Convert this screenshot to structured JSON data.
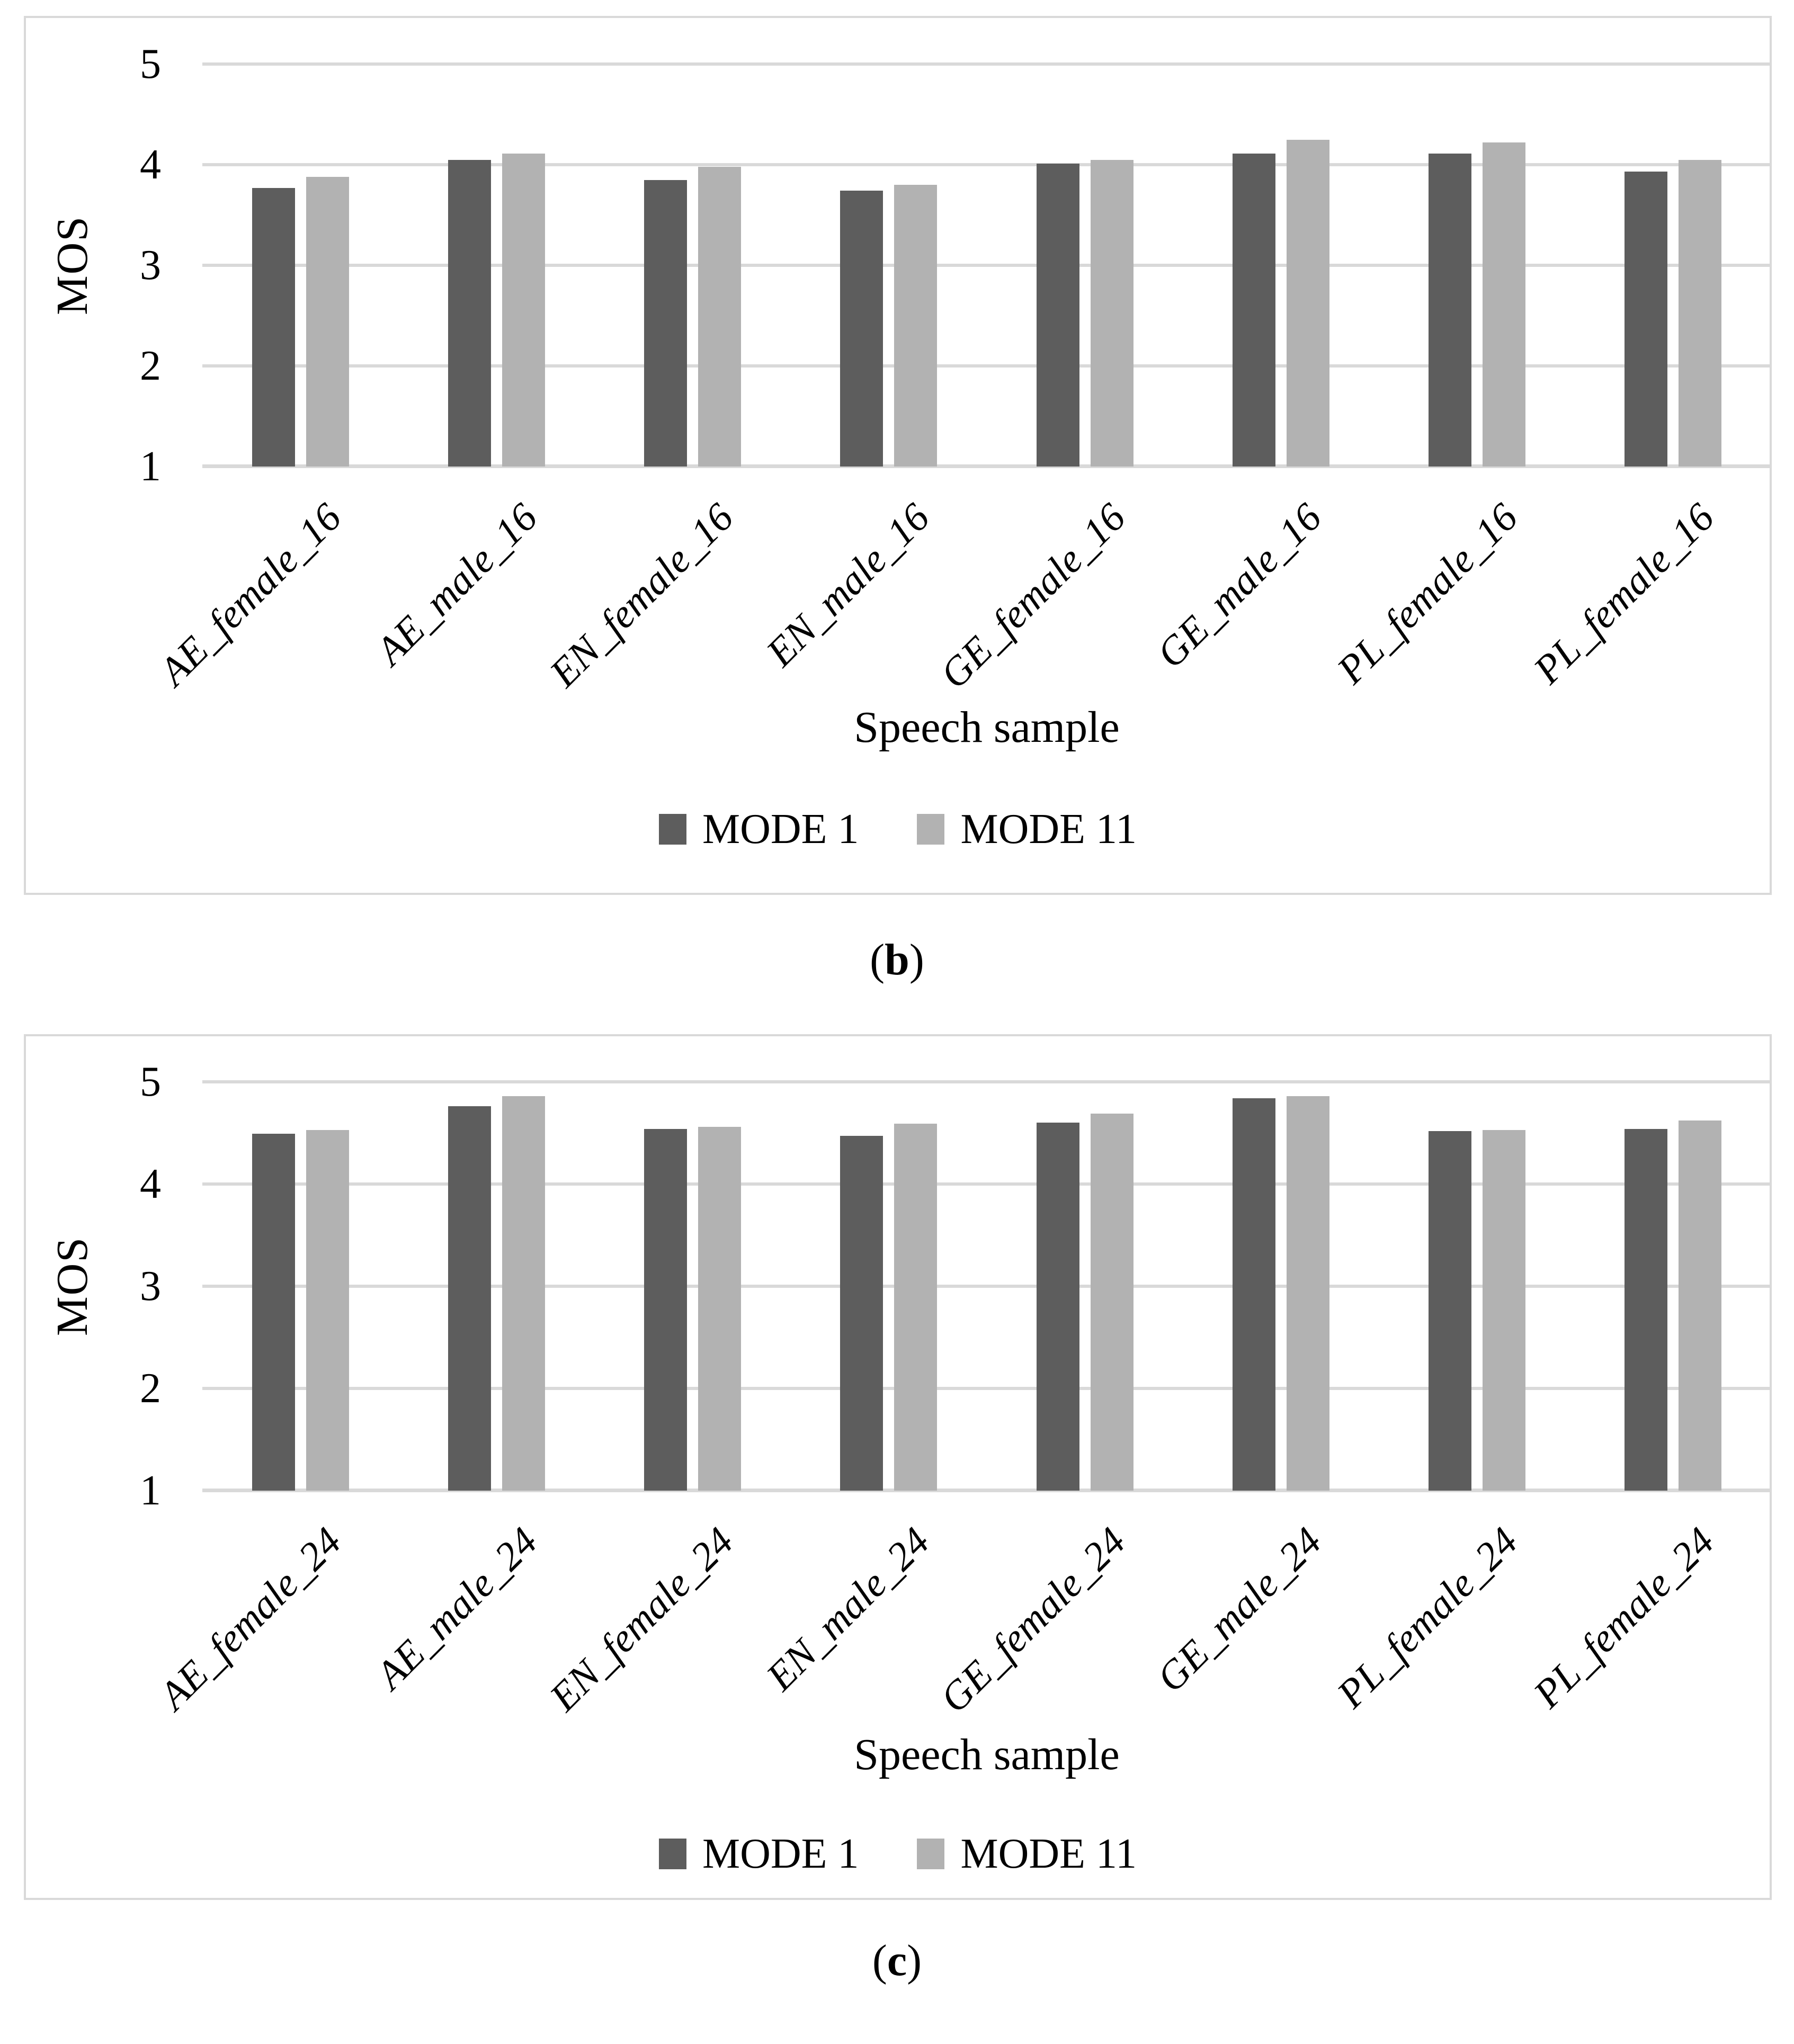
{
  "figure": {
    "captions": [
      {
        "open": "(",
        "letter": "b",
        "close": ")"
      },
      {
        "open": "(",
        "letter": "c",
        "close": ")"
      }
    ]
  },
  "styles": {
    "mode1_color": "#5D5D5D",
    "mode11_color": "#B2B2B2",
    "gridline_color": "#D9D9D9",
    "border_color": "#D9D9D9",
    "text_color": "#000000"
  },
  "chart_data": [
    {
      "type": "bar",
      "panel": "b",
      "title": "",
      "xlabel": "Speech sample",
      "ylabel": "MOS",
      "ylim": [
        1,
        5
      ],
      "yticks": [
        5,
        4,
        3,
        2,
        1
      ],
      "grid": true,
      "legend_position": "bottom",
      "categories": [
        "AE_female_16",
        "AE_male_16",
        "EN_female_16",
        "EN_male_16",
        "GE_female_16",
        "GE_male_16",
        "PL_female_16",
        "PL_female_16"
      ],
      "series": [
        {
          "name": "MODE 1",
          "color": "#5D5D5D",
          "values": [
            3.77,
            4.05,
            3.85,
            3.74,
            4.01,
            4.11,
            4.11,
            3.93
          ]
        },
        {
          "name": "MODE 11",
          "color": "#B2B2B2",
          "values": [
            3.88,
            4.11,
            3.98,
            3.8,
            4.05,
            4.25,
            4.22,
            4.05
          ]
        }
      ]
    },
    {
      "type": "bar",
      "panel": "c",
      "title": "",
      "xlabel": "Speech sample",
      "ylabel": "MOS",
      "ylim": [
        1,
        5
      ],
      "yticks": [
        5,
        4,
        3,
        2,
        1
      ],
      "grid": true,
      "legend_position": "bottom",
      "categories": [
        "AE_female_24",
        "AE_male_24",
        "EN_female_24",
        "EN_male_24",
        "GE_female_24",
        "GE_male_24",
        "PL_female_24",
        "PL_female_24"
      ],
      "series": [
        {
          "name": "MODE 1",
          "color": "#5D5D5D",
          "values": [
            4.49,
            4.76,
            4.54,
            4.47,
            4.6,
            4.84,
            4.52,
            4.54
          ]
        },
        {
          "name": "MODE 11",
          "color": "#B2B2B2",
          "values": [
            4.53,
            4.86,
            4.56,
            4.59,
            4.69,
            4.86,
            4.53,
            4.62
          ]
        }
      ]
    }
  ]
}
